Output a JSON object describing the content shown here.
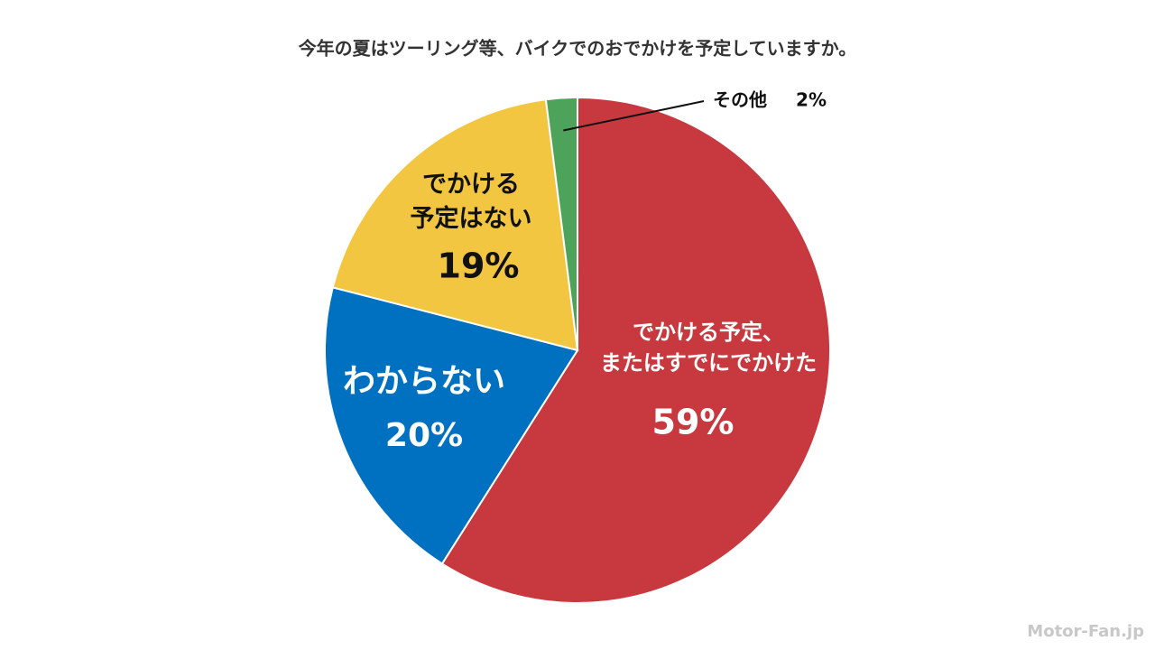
{
  "chart_data": {
    "type": "pie",
    "title": "今年の夏はツーリング等、バイクでのおでかけを予定していますか。",
    "categories": [
      "でかける予定、\nまたはすでにでかけた",
      "わからない",
      "でかける\n予定はない",
      "その他"
    ],
    "values": [
      59,
      20,
      19,
      2
    ],
    "value_labels": [
      "59%",
      "20%",
      "19%",
      "2%"
    ],
    "colors": [
      "#c8393f",
      "#0070c0",
      "#f2c641",
      "#4ea35a"
    ]
  },
  "watermark": "Motor-Fan.jp"
}
